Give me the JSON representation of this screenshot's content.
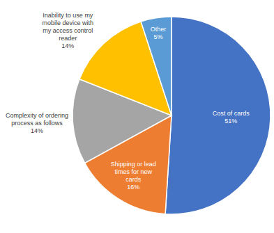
{
  "chart_data": {
    "type": "pie",
    "categories": [
      "Cost of cards",
      "Shipping or lead times for new cards",
      "Complexity of ordering process as follows",
      "Inability to use my mobile device with my access control reader",
      "Other"
    ],
    "values": [
      51,
      16,
      14,
      14,
      5
    ],
    "value_labels": [
      "51%",
      "16%",
      "14%",
      "14%",
      "5%"
    ],
    "colors": [
      "#4472c4",
      "#ed7d31",
      "#a5a5a5",
      "#ffc000",
      "#5b9bd5"
    ],
    "data_labels": true
  }
}
